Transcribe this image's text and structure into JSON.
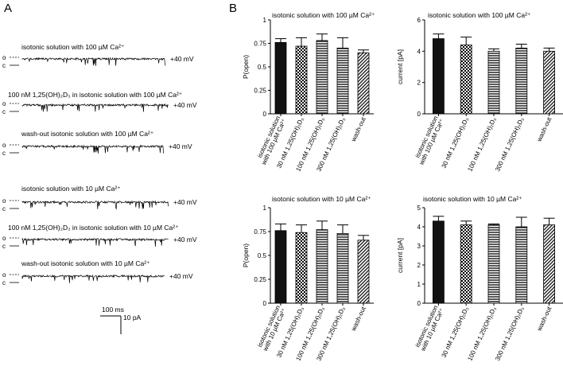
{
  "panel_a": {
    "label": "A",
    "open_marker": "o",
    "closed_marker": "c",
    "voltage": "+40 mV",
    "traces": [
      {
        "title": "isotonic solution with 100 µM  Ca²⁺"
      },
      {
        "title": "100 nM 1,25(OH)₂D₃ in isotonic solution with 100 µM  Ca²⁺"
      },
      {
        "title": "wash-out isotonic solution with 100 µM  Ca²⁺"
      },
      {
        "title": "isotonic solution with 10 µM  Ca²⁺"
      },
      {
        "title": "100 nM 1,25(OH)₂D₃ in isotonic solution with 10 µM  Ca²⁺"
      },
      {
        "title": "wash-out isotonic solution with 10 µM  Ca²⁺"
      }
    ],
    "scalebar": {
      "time": "100 ms",
      "current": "10 pA"
    }
  },
  "panel_b": {
    "label": "B"
  },
  "chart_data": [
    {
      "type": "bar",
      "title": "isotonic solution with 100 µM  Ca²⁺",
      "ylabel": "P(open)",
      "ylim": [
        0,
        1
      ],
      "yticks": [
        "0",
        "0.25",
        "0.5",
        "0.75",
        "1"
      ],
      "categories": [
        "isotonic solution with 100 µM Ca²⁺",
        "30 nM 1,25(OH)₂D₃",
        "100 nM 1,25(OH)₂D₃",
        "300 nM 1,25(OH)₂D₃",
        "wash-out"
      ],
      "values": [
        0.76,
        0.72,
        0.78,
        0.7,
        0.65
      ],
      "errors": [
        0.04,
        0.09,
        0.07,
        0.11,
        0.03
      ],
      "patterns": [
        "solid",
        "checker",
        "hatch-h",
        "hatch-h",
        "hatch-d"
      ]
    },
    {
      "type": "bar",
      "title": "isotonic solution with 100 µM  Ca²⁺",
      "ylabel": "current [pA]",
      "ylim": [
        0,
        6
      ],
      "yticks": [
        "0",
        "2",
        "4",
        "6"
      ],
      "categories": [
        "isotonic solution with 100 µM Ca²⁺",
        "30 nM 1,25(OH)₂D₃",
        "100 nM 1,25(OH)₂D₃",
        "300 nM 1,25(OH)₂D₃",
        "wash-out"
      ],
      "values": [
        4.8,
        4.4,
        4.0,
        4.2,
        4.0
      ],
      "errors": [
        0.3,
        0.5,
        0.15,
        0.25,
        0.2
      ],
      "patterns": [
        "solid",
        "checker",
        "hatch-h",
        "hatch-h",
        "hatch-d"
      ]
    },
    {
      "type": "bar",
      "title": "isotonic solution with 10 µM  Ca²⁺",
      "ylabel": "P(open)",
      "ylim": [
        0,
        1
      ],
      "yticks": [
        "0",
        "0.25",
        "0.5",
        "0.75",
        "1"
      ],
      "categories": [
        "isotonic solution with 10 µM Ca²⁺",
        "30 nM 1,25(OH)₂D₃",
        "100 nM 1,25(OH)₂D₃",
        "300 nM 1,25(OH)₂D₃",
        "wash-out"
      ],
      "values": [
        0.76,
        0.74,
        0.77,
        0.73,
        0.66
      ],
      "errors": [
        0.07,
        0.08,
        0.09,
        0.09,
        0.05
      ],
      "patterns": [
        "solid",
        "checker",
        "hatch-h",
        "hatch-h",
        "hatch-d"
      ]
    },
    {
      "type": "bar",
      "title": "isotonic solution with 10 µM  Ca²⁺",
      "ylabel": "current [pA]",
      "ylim": [
        0,
        5
      ],
      "yticks": [
        "0",
        "1",
        "2",
        "3",
        "4",
        "5"
      ],
      "categories": [
        "isotonic solution with 10 µM Ca²⁺",
        "30 nM 1,25(OH)₂D₃",
        "100 nM 1,25(OH)₂D₃",
        "300 nM 1,25(OH)₂D₃",
        "wash-out"
      ],
      "values": [
        4.3,
        4.1,
        4.1,
        4.0,
        4.1
      ],
      "errors": [
        0.25,
        0.2,
        0.05,
        0.5,
        0.35
      ],
      "patterns": [
        "solid",
        "checker",
        "hatch-h",
        "hatch-h",
        "hatch-d"
      ]
    }
  ]
}
